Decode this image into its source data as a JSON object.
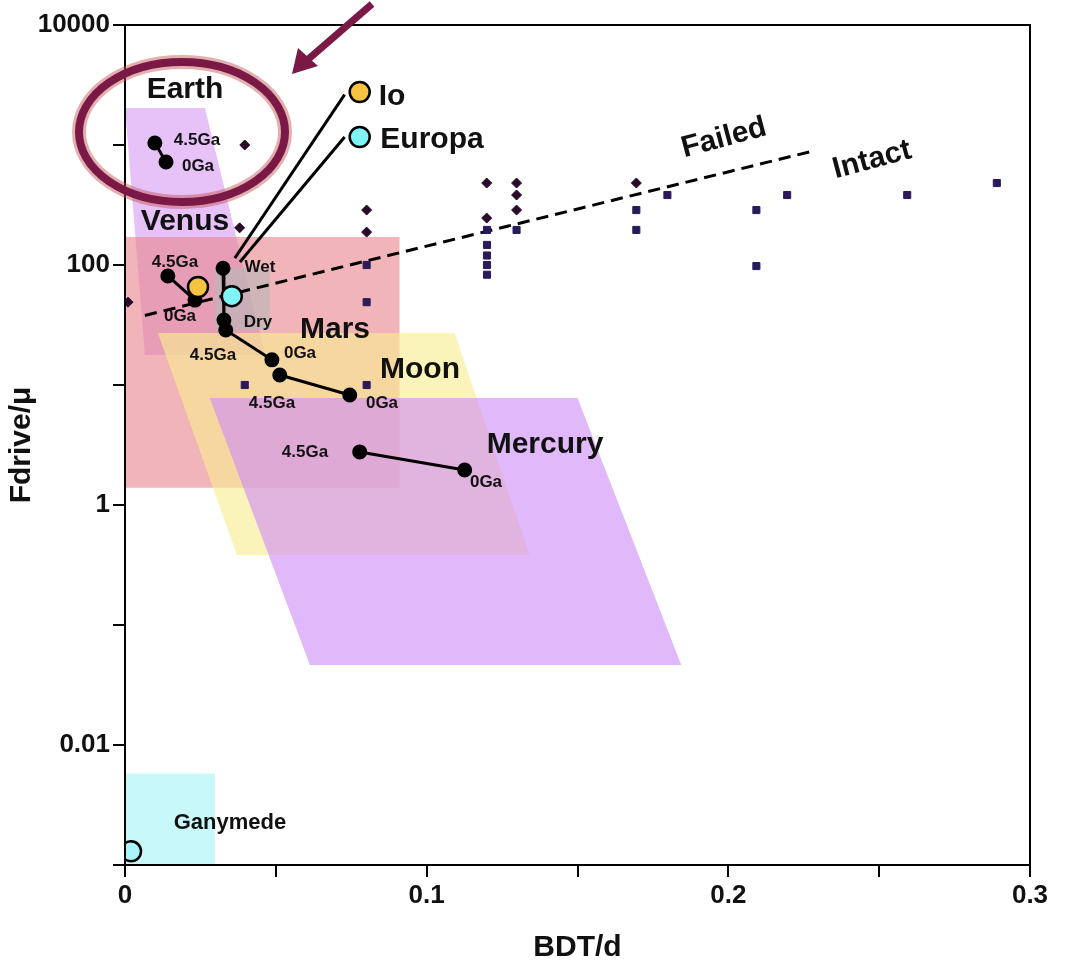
{
  "chart_data": {
    "type": "scatter",
    "xlabel": "BDT/d",
    "ylabel": "Fdrive/μ",
    "xlim": [
      0,
      0.3
    ],
    "xticks": [
      0,
      {
        "value": 0.05,
        "label": null
      },
      0.1,
      {
        "value": 0.15,
        "label": null
      },
      0.2,
      {
        "value": 0.25,
        "label": null
      },
      0.3
    ],
    "ylim": [
      0.001,
      10000
    ],
    "yticks": [
      {
        "value": 0.001,
        "label": null
      },
      0.01,
      {
        "value": 0.1,
        "label": null
      },
      1,
      {
        "value": 10,
        "label": null
      },
      100,
      {
        "value": 1000,
        "label": null
      },
      10000
    ],
    "log": "y",
    "grid": false,
    "legend": false,
    "series": [
      {
        "type": "area",
        "color": "#d89cf6",
        "x": [
          0,
          0.0265,
          0.0464,
          0.0066,
          0
        ],
        "values": [
          2030,
          2030,
          17.8,
          17.8,
          2030
        ]
      },
      {
        "type": "area",
        "color": "#e8868c",
        "x": [
          0,
          0.091,
          0.091,
          0,
          0
        ],
        "values": [
          171,
          171,
          1.39,
          1.39,
          171
        ]
      },
      {
        "type": "area",
        "color": "#f8ee90",
        "x": [
          0.0109,
          0.1093,
          0.1341,
          0.0371,
          0.0109
        ],
        "values": [
          27.1,
          27.1,
          0.383,
          0.383,
          27.1
        ]
      },
      {
        "type": "area",
        "color": "#cf8cf5",
        "x": [
          0.0281,
          0.15,
          0.1844,
          0.0613,
          0.0281
        ],
        "values": [
          7.8,
          7.8,
          0.0464,
          0.0464,
          7.8
        ]
      },
      {
        "type": "area",
        "color": "#b8b8b8",
        "x": [
          0.0298,
          0.048,
          0.048,
          0.0298,
          0.0298
        ],
        "values": [
          94,
          94,
          28.7,
          28.7,
          94
        ]
      },
      {
        "type": "area",
        "color": "#a8f4f8",
        "x": [
          0,
          0.0298,
          0.0298,
          0,
          0
        ],
        "values": [
          0.0058,
          0.0058,
          0.001,
          0.001,
          0.0058
        ]
      },
      {
        "type": "line",
        "color": "#000000",
        "line_style": "dashed",
        "marker": "none",
        "x": [
          0.0066,
          0.2268
        ],
        "values": [
          38,
          875
        ]
      },
      {
        "color": "#2a0a2a",
        "marker": "diamond",
        "x": [
          0.001,
          0.038,
          0.0397,
          0.0801,
          0.0801,
          0.1199,
          0.1199,
          0.1298,
          0.1298,
          0.1298,
          0.1695
        ],
        "values": [
          49,
          204,
          1000,
          287,
          188,
          482,
          246,
          482,
          383,
          287,
          482
        ]
      },
      {
        "color": "#2a1a5a",
        "marker": "square",
        "x": [
          0.0801,
          0.0801,
          0.0397,
          0.0801,
          0.12,
          0.12,
          0.12,
          0.12,
          0.12,
          0.1298,
          0.1695,
          0.1695,
          0.1798,
          0.2093,
          0.2093,
          0.2195,
          0.2593,
          0.289
        ],
        "values": [
          100,
          49,
          10,
          10,
          196,
          147,
          120,
          100,
          83,
          196,
          287,
          196,
          383,
          287,
          98,
          383,
          383,
          482
        ]
      },
      {
        "type": "line",
        "color": "#000000",
        "marker": "circle",
        "x": [
          0.0099,
          0.0136
        ],
        "values": [
          1040,
          721
        ]
      },
      {
        "type": "line",
        "color": "#000000",
        "marker": "circle",
        "x": [
          0.0142,
          0.0232
        ],
        "values": [
          81,
          51
        ]
      },
      {
        "type": "line",
        "color": "#000000",
        "marker": "circle",
        "x": [
          0.0325,
          0.0328
        ],
        "values": [
          94,
          34.8
        ]
      },
      {
        "type": "line",
        "color": "#000000",
        "marker": "circle",
        "x": [
          0.0334,
          0.0487
        ],
        "values": [
          28.7,
          16.2
        ]
      },
      {
        "type": "line",
        "color": "#000000",
        "marker": "circle",
        "x": [
          0.0513,
          0.0745
        ],
        "values": [
          12.1,
          8.25
        ]
      },
      {
        "type": "line",
        "color": "#000000",
        "marker": "circle",
        "x": [
          0.0778,
          0.1126
        ],
        "values": [
          2.77,
          1.96
        ]
      },
      {
        "type": "line",
        "color": "#000000",
        "marker": "none",
        "x": [
          0.0364,
          0.0728
        ],
        "values": [
          114,
          2630
        ]
      },
      {
        "type": "line",
        "color": "#000000",
        "marker": "none",
        "x": [
          0.0381,
          0.0728
        ],
        "values": [
          106,
          1166
        ]
      },
      {
        "marker": "circle",
        "colors": [
          "#f5c242",
          "#7ff5f5",
          "#f5c242",
          "#7ff5f5",
          "#a8f4f8"
        ],
        "x": [
          0.0778,
          0.0778,
          0.0242,
          0.0354,
          0.002
        ],
        "values": [
          2766,
          1166,
          65.6,
          55,
          0.0013
        ]
      }
    ],
    "annotations": [
      "Earth",
      "Venus",
      "Mars",
      "Moon",
      "Mercury",
      "Io",
      "Europa",
      "Failed",
      "Intact",
      "Ganymede",
      "Wet",
      "Dry",
      "4.5Ga",
      "0Ga",
      "4.5Ga",
      "0Ga",
      "4.5Ga",
      "0Ga",
      "4.5Ga",
      "0Ga",
      "4.5Ga",
      "0Ga"
    ]
  }
}
